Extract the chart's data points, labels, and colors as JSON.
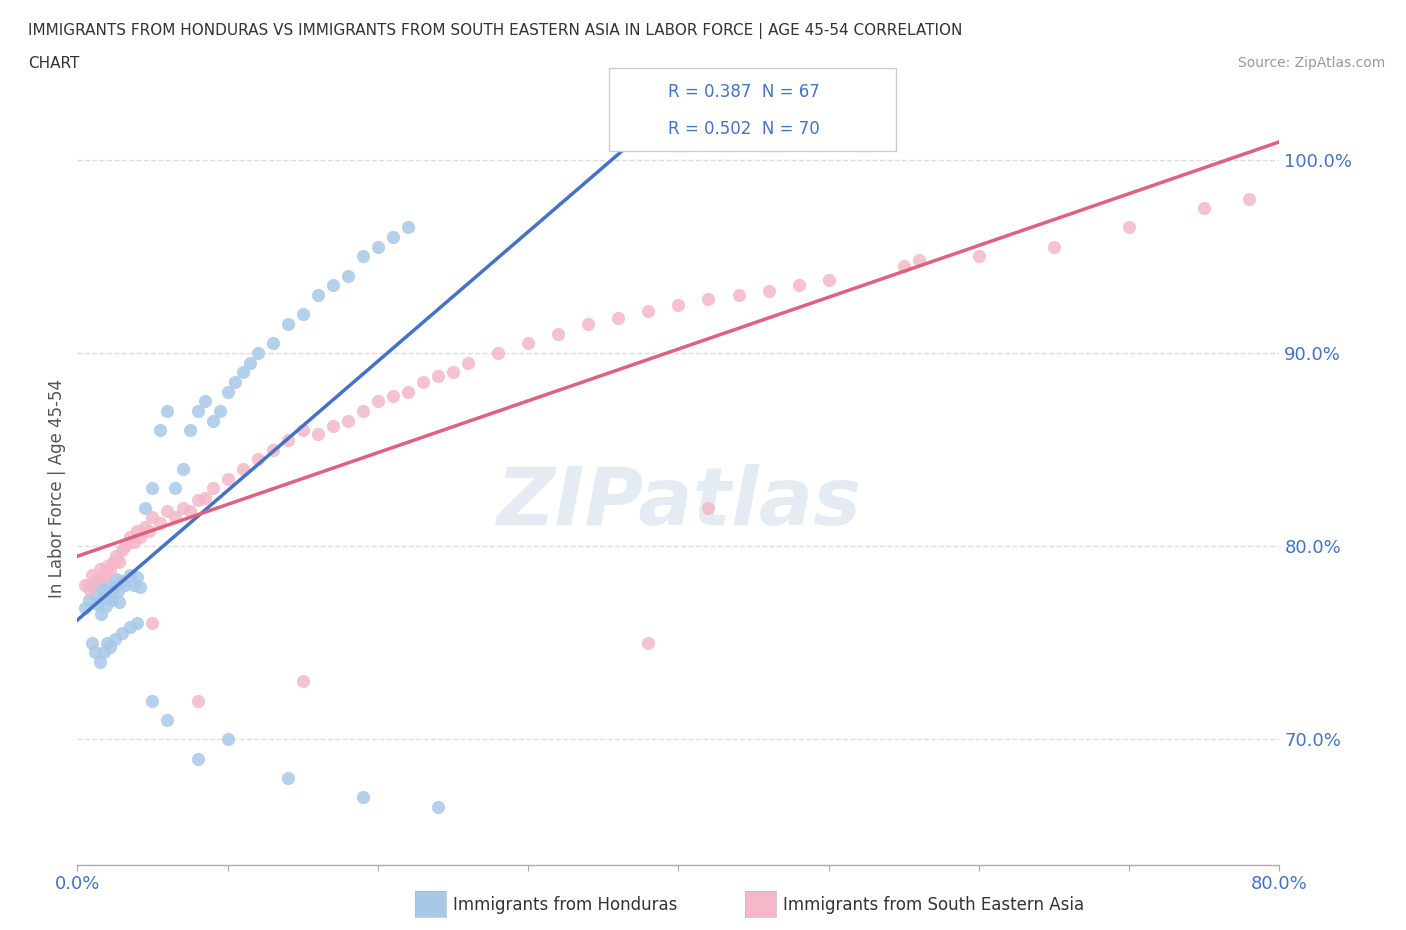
{
  "title_line1": "IMMIGRANTS FROM HONDURAS VS IMMIGRANTS FROM SOUTH EASTERN ASIA IN LABOR FORCE | AGE 45-54 CORRELATION",
  "title_line2": "CHART",
  "source_text": "Source: ZipAtlas.com",
  "ylabel": "In Labor Force | Age 45-54",
  "xlim": [
    0.0,
    0.8
  ],
  "ylim": [
    0.635,
    1.025
  ],
  "blue_color": "#a8c8e8",
  "pink_color": "#f4b8c8",
  "blue_line_color": "#4472c4",
  "pink_line_color": "#e06080",
  "tick_color": "#4472c4",
  "label_color": "#555555",
  "R_blue": 0.387,
  "N_blue": 67,
  "R_pink": 0.502,
  "N_pink": 70,
  "background_color": "#ffffff",
  "grid_color": "#dddddd",
  "blue_x": [
    0.005,
    0.008,
    0.01,
    0.012,
    0.013,
    0.015,
    0.016,
    0.017,
    0.018,
    0.019,
    0.02,
    0.021,
    0.022,
    0.023,
    0.025,
    0.026,
    0.027,
    0.028,
    0.03,
    0.032,
    0.035,
    0.038,
    0.04,
    0.042,
    0.045,
    0.05,
    0.055,
    0.06,
    0.065,
    0.07,
    0.075,
    0.08,
    0.085,
    0.09,
    0.095,
    0.1,
    0.105,
    0.11,
    0.115,
    0.12,
    0.13,
    0.14,
    0.15,
    0.16,
    0.17,
    0.18,
    0.19,
    0.2,
    0.21,
    0.22,
    0.01,
    0.012,
    0.015,
    0.018,
    0.02,
    0.022,
    0.025,
    0.03,
    0.035,
    0.04,
    0.05,
    0.06,
    0.08,
    0.1,
    0.14,
    0.19,
    0.24
  ],
  "blue_y": [
    0.768,
    0.772,
    0.78,
    0.775,
    0.77,
    0.782,
    0.765,
    0.778,
    0.773,
    0.769,
    0.78,
    0.774,
    0.776,
    0.772,
    0.779,
    0.783,
    0.777,
    0.771,
    0.782,
    0.78,
    0.785,
    0.78,
    0.784,
    0.779,
    0.82,
    0.83,
    0.86,
    0.87,
    0.83,
    0.84,
    0.86,
    0.87,
    0.875,
    0.865,
    0.87,
    0.88,
    0.885,
    0.89,
    0.895,
    0.9,
    0.905,
    0.915,
    0.92,
    0.93,
    0.935,
    0.94,
    0.95,
    0.955,
    0.96,
    0.965,
    0.75,
    0.745,
    0.74,
    0.745,
    0.75,
    0.748,
    0.752,
    0.755,
    0.758,
    0.76,
    0.72,
    0.71,
    0.69,
    0.7,
    0.68,
    0.67,
    0.665
  ],
  "pink_x": [
    0.005,
    0.008,
    0.01,
    0.012,
    0.015,
    0.017,
    0.019,
    0.02,
    0.022,
    0.024,
    0.026,
    0.028,
    0.03,
    0.032,
    0.035,
    0.038,
    0.04,
    0.042,
    0.045,
    0.048,
    0.05,
    0.055,
    0.06,
    0.065,
    0.07,
    0.075,
    0.08,
    0.085,
    0.09,
    0.1,
    0.11,
    0.12,
    0.13,
    0.14,
    0.15,
    0.16,
    0.17,
    0.18,
    0.19,
    0.2,
    0.21,
    0.22,
    0.23,
    0.24,
    0.25,
    0.26,
    0.28,
    0.3,
    0.32,
    0.34,
    0.36,
    0.38,
    0.4,
    0.42,
    0.44,
    0.46,
    0.48,
    0.5,
    0.55,
    0.6,
    0.65,
    0.7,
    0.75,
    0.78,
    0.56,
    0.42,
    0.15,
    0.38,
    0.08,
    0.05
  ],
  "pink_y": [
    0.78,
    0.778,
    0.785,
    0.782,
    0.788,
    0.784,
    0.786,
    0.79,
    0.788,
    0.792,
    0.795,
    0.792,
    0.798,
    0.8,
    0.805,
    0.802,
    0.808,
    0.805,
    0.81,
    0.808,
    0.815,
    0.812,
    0.818,
    0.815,
    0.82,
    0.818,
    0.824,
    0.825,
    0.83,
    0.835,
    0.84,
    0.845,
    0.85,
    0.855,
    0.86,
    0.858,
    0.862,
    0.865,
    0.87,
    0.875,
    0.878,
    0.88,
    0.885,
    0.888,
    0.89,
    0.895,
    0.9,
    0.905,
    0.91,
    0.915,
    0.918,
    0.922,
    0.925,
    0.928,
    0.93,
    0.932,
    0.935,
    0.938,
    0.945,
    0.95,
    0.955,
    0.965,
    0.975,
    0.98,
    0.948,
    0.82,
    0.73,
    0.75,
    0.72,
    0.76
  ]
}
